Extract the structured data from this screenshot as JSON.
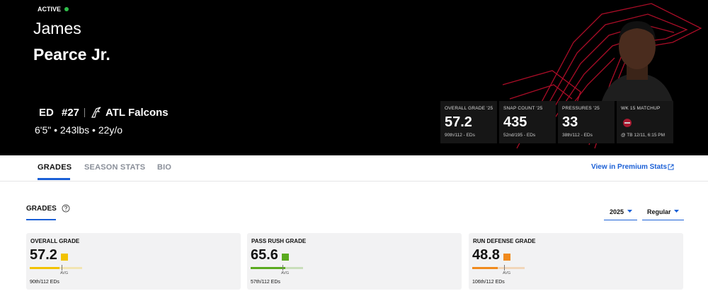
{
  "header": {
    "status": "ACTIVE",
    "first_name": "James",
    "last_name": "Pearce Jr.",
    "position": "ED",
    "number": "#27",
    "team": "ATL Falcons",
    "bio_line": "6'5\" • 243lbs • 22y/o",
    "stats": [
      {
        "label": "OVERALL GRADE '25",
        "value": 57.2,
        "sub": "90th/112 - EDs"
      },
      {
        "label": "SNAP COUNT '25",
        "value": 435,
        "sub": "52nd/195 - EDs"
      },
      {
        "label": "PRESSURES '25",
        "value": 33,
        "sub": "38th/112 - EDs"
      },
      {
        "label": "WK 15 MATCHUP",
        "sub": "@ TB 12/11, 6:15 PM"
      }
    ]
  },
  "tabs": [
    "GRADES",
    "SEASON STATS",
    "BIO"
  ],
  "premium_link": "View in Premium Stats",
  "section_title": "GRADES",
  "filters": [
    "2025",
    "Regular"
  ],
  "grade_cards": [
    {
      "title": "OVERALL GRADE",
      "value": 57.2,
      "color": "#f2c200",
      "avg_label": "AVG",
      "rank": "90th/112 EDs"
    },
    {
      "title": "PASS RUSH GRADE",
      "value": 65.6,
      "color": "#5aaa1e",
      "avg_label": "AVG",
      "rank": "57th/112 EDs"
    },
    {
      "title": "RUN DEFENSE GRADE",
      "value": 48.8,
      "color": "#f08a1c",
      "avg_label": "AVG",
      "rank": "106th/112 EDs"
    }
  ]
}
